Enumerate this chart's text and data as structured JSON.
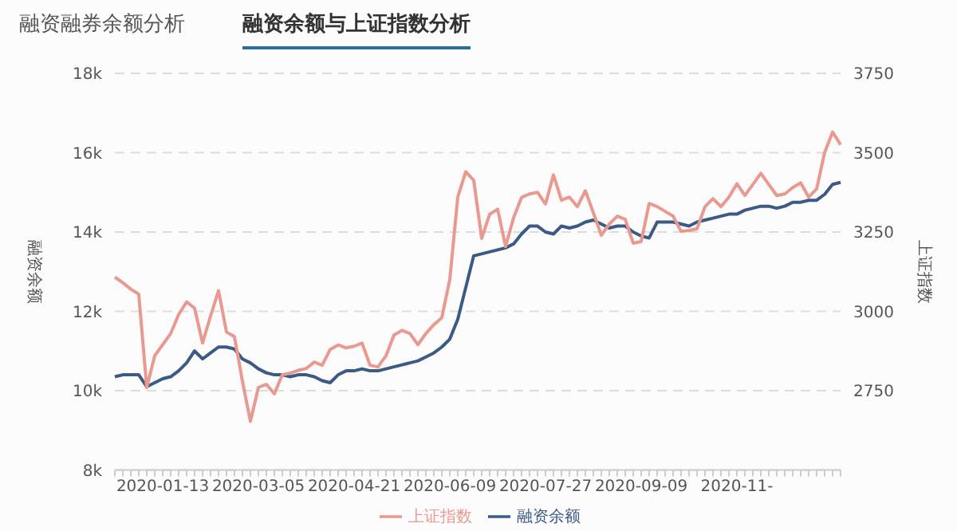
{
  "chart_data": {
    "type": "line",
    "title": "融资余额与上证指数分析",
    "annotations": [
      "融资融券余额分析"
    ],
    "ylabel": "融资余额",
    "y2label": "上证指数",
    "categories": [
      null,
      null,
      null,
      null,
      null,
      null,
      "2020-01-13",
      null,
      null,
      null,
      null,
      null,
      null,
      null,
      null,
      null,
      null,
      null,
      "2020-03-05",
      null,
      null,
      null,
      null,
      null,
      null,
      null,
      null,
      null,
      null,
      null,
      "2020-04-21",
      null,
      null,
      null,
      null,
      null,
      null,
      null,
      null,
      null,
      null,
      null,
      "2020-06-09",
      null,
      null,
      null,
      null,
      null,
      null,
      null,
      null,
      null,
      null,
      null,
      "2020-07-27",
      null,
      null,
      null,
      null,
      null,
      null,
      null,
      null,
      null,
      null,
      null,
      "2020-09-09",
      null,
      null,
      null,
      null,
      null,
      null,
      null,
      null,
      null,
      null,
      null,
      "2020-11-",
      null,
      null,
      null,
      null,
      null,
      null,
      null,
      null,
      null,
      null,
      null,
      null,
      null
    ],
    "series": [
      {
        "name": "融资余额",
        "color": "#3b5a86",
        "values": [
          10350,
          10400,
          10400,
          10400,
          10100,
          10200,
          10300,
          10350,
          10500,
          10700,
          11000,
          10800,
          10950,
          11100,
          11100,
          11050,
          10800,
          10700,
          10550,
          10450,
          10400,
          10400,
          10350,
          10400,
          10400,
          10350,
          10250,
          10200,
          10400,
          10500,
          10500,
          10550,
          10500,
          10500,
          10550,
          10600,
          10650,
          10700,
          10750,
          10850,
          10950,
          11100,
          11300,
          11800,
          12600,
          13400,
          13450,
          13500,
          13550,
          13600,
          13700,
          13950,
          14150,
          14150,
          14000,
          13950,
          14150,
          14100,
          14150,
          14250,
          14300,
          14200,
          14100,
          14150,
          14150,
          14000,
          13900,
          13850,
          14250,
          14250,
          14250,
          14200,
          14150,
          14250,
          14300,
          14350,
          14400,
          14450,
          14450,
          14550,
          14600,
          14650,
          14650,
          14600,
          14650,
          14750,
          14750,
          14800,
          14800,
          14950,
          15200,
          15250
        ]
      },
      {
        "name": "上证指数",
        "color": "#e9998f",
        "axis": "y2",
        "values": [
          3108,
          3090,
          3070,
          3054,
          2760,
          2860,
          2895,
          2930,
          2990,
          3030,
          3010,
          2900,
          2985,
          3065,
          2935,
          2920,
          2780,
          2653,
          2760,
          2770,
          2740,
          2800,
          2805,
          2814,
          2820,
          2840,
          2830,
          2880,
          2894,
          2885,
          2890,
          2900,
          2830,
          2825,
          2860,
          2925,
          2940,
          2930,
          2895,
          2930,
          2958,
          2980,
          3100,
          3360,
          3440,
          3413,
          3230,
          3306,
          3322,
          3204,
          3295,
          3359,
          3370,
          3375,
          3338,
          3430,
          3350,
          3360,
          3330,
          3380,
          3311,
          3240,
          3275,
          3300,
          3290,
          3215,
          3220,
          3340,
          3330,
          3315,
          3300,
          3252,
          3255,
          3260,
          3330,
          3355,
          3330,
          3360,
          3402,
          3365,
          3400,
          3435,
          3400,
          3365,
          3370,
          3390,
          3405,
          3360,
          3386,
          3500,
          3565,
          3525
        ]
      }
    ],
    "ylim": [
      8000,
      18000
    ],
    "yticks": [
      {
        "value": 8000,
        "label": "8k"
      },
      {
        "value": 10000,
        "label": "10k"
      },
      {
        "value": 12000,
        "label": "12k"
      },
      {
        "value": 14000,
        "label": "14k"
      },
      {
        "value": 16000,
        "label": "16k"
      },
      {
        "value": 18000,
        "label": "18k"
      }
    ],
    "y2lim": [
      2500,
      3750
    ],
    "y2ticks": [
      2750,
      3000,
      3250,
      3500,
      3750
    ],
    "grid": "y",
    "legend": "bottom",
    "marker": "none",
    "line_style": "solid"
  }
}
